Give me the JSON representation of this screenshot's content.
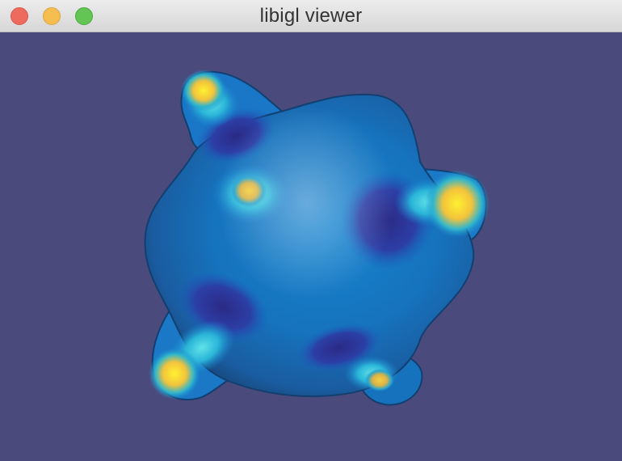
{
  "window": {
    "title": "libigl viewer"
  },
  "viewport": {
    "background_color": "#4a4a7d",
    "mesh_colormap": [
      "#2a2a8a",
      "#1a5cc0",
      "#1580d0",
      "#20b8d8",
      "#f0c040",
      "#ffe830"
    ]
  }
}
